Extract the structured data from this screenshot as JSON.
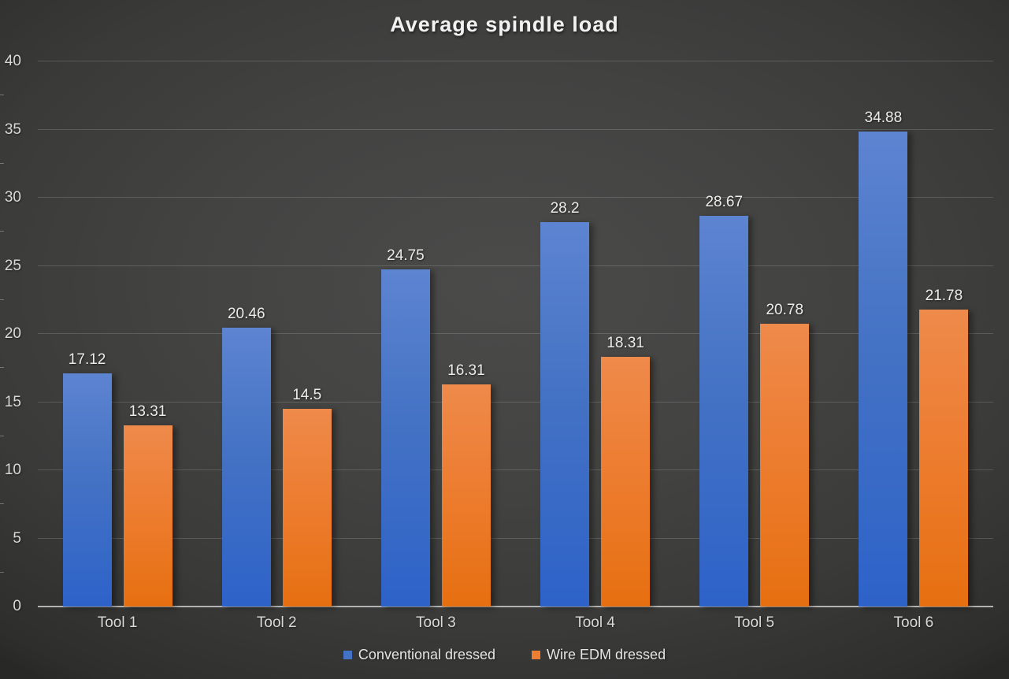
{
  "title": "Average spindle load",
  "chart_data": {
    "type": "bar",
    "title": "Average spindle load",
    "categories": [
      "Tool 1",
      "Tool 2",
      "Tool 3",
      "Tool 4",
      "Tool 5",
      "Tool 6"
    ],
    "series": [
      {
        "name": "Conventional dressed",
        "color": "#4472C4",
        "gradient_top": "#5D84D1",
        "gradient_bottom": "#2D62C8",
        "values": [
          17.12,
          20.46,
          24.75,
          28.2,
          28.67,
          34.88
        ]
      },
      {
        "name": "Wire EDM dressed",
        "color": "#ED7D31",
        "gradient_top": "#EE8A4B",
        "gradient_bottom": "#E66F10",
        "values": [
          13.31,
          14.5,
          16.31,
          18.31,
          20.78,
          21.78
        ]
      }
    ],
    "ylim": [
      0,
      40
    ],
    "yticks": [
      0,
      5,
      10,
      15,
      20,
      25,
      30,
      35,
      40
    ],
    "grid": true,
    "data_labels": true,
    "legend_position": "bottom",
    "colors": {
      "background_center": "#4B4B4A",
      "background_edge": "#282827",
      "grid_line": "#5F5F5F",
      "axis_line": "#B3B3B3",
      "text": "#D9D9D9",
      "title_text": "#F2F2F2"
    }
  }
}
